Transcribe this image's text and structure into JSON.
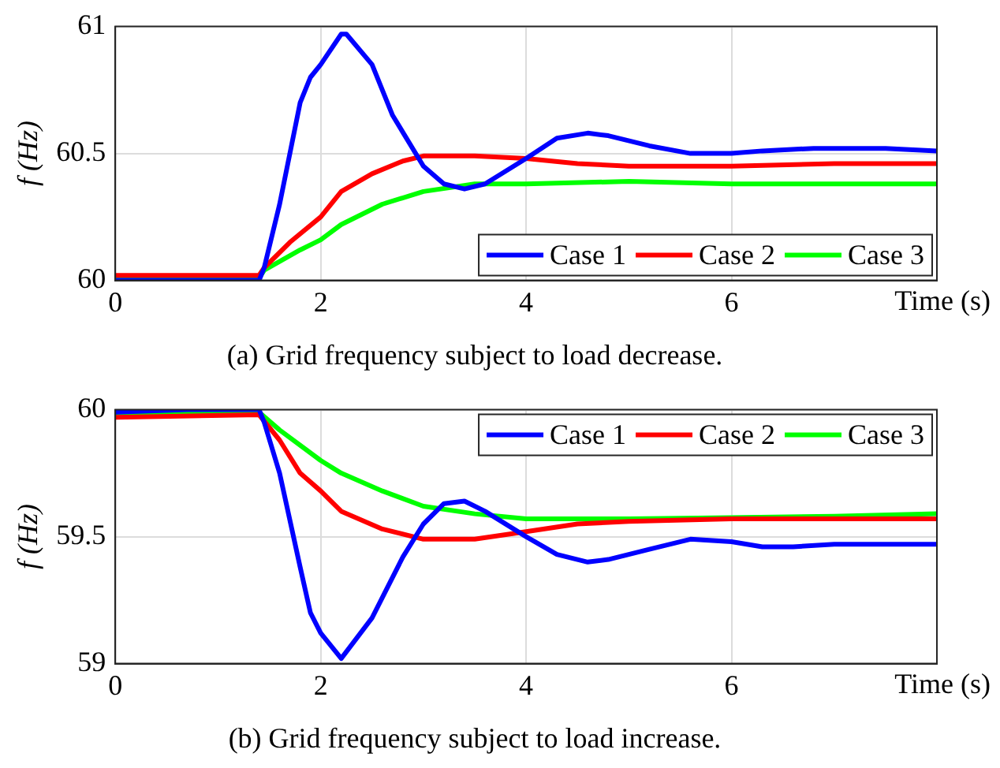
{
  "chart_data": [
    {
      "type": "line",
      "title": "(a) Grid frequency subject to load decrease.",
      "xlabel": "Time (s)",
      "ylabel": "f (Hz)",
      "xlim": [
        0,
        8
      ],
      "xticks": [
        0,
        2,
        4,
        6
      ],
      "ylim": [
        60,
        61
      ],
      "yticks": [
        60,
        60.5,
        61
      ],
      "grid": true,
      "legend": "bottom right",
      "line_style": "solid",
      "marker": "none",
      "series": [
        {
          "name": "Case 1",
          "color": "#0000ff",
          "x": [
            0,
            0.7,
            1.4,
            1.45,
            1.6,
            1.8,
            1.9,
            2.0,
            2.2,
            2.25,
            2.5,
            2.7,
            3.0,
            3.2,
            3.4,
            3.6,
            4.0,
            4.3,
            4.6,
            4.8,
            5.2,
            5.6,
            6.0,
            6.3,
            6.8,
            7.5,
            8
          ],
          "values": [
            60,
            60,
            60,
            60.05,
            60.3,
            60.7,
            60.8,
            60.85,
            60.97,
            60.97,
            60.85,
            60.65,
            60.45,
            60.38,
            60.36,
            60.38,
            60.48,
            60.56,
            60.58,
            60.57,
            60.53,
            60.5,
            60.5,
            60.51,
            60.52,
            60.52,
            60.51
          ]
        },
        {
          "name": "Case 2",
          "color": "#ff0000",
          "x": [
            0,
            1.4,
            1.45,
            1.7,
            2.0,
            2.2,
            2.5,
            2.8,
            3.0,
            3.5,
            4.0,
            4.5,
            5,
            6,
            7,
            8
          ],
          "values": [
            60.02,
            60.02,
            60.05,
            60.15,
            60.25,
            60.35,
            60.42,
            60.47,
            60.49,
            60.49,
            60.48,
            60.46,
            60.45,
            60.45,
            60.46,
            60.46
          ]
        },
        {
          "name": "Case 3",
          "color": "#00ff00",
          "x": [
            0,
            1.4,
            1.45,
            1.8,
            2.0,
            2.2,
            2.6,
            3.0,
            3.5,
            4,
            5,
            6,
            7,
            8
          ],
          "values": [
            60.01,
            60.01,
            60.04,
            60.12,
            60.16,
            60.22,
            60.3,
            60.35,
            60.38,
            60.38,
            60.39,
            60.38,
            60.38,
            60.38
          ]
        }
      ]
    },
    {
      "type": "line",
      "title": "(b) Grid frequency subject to load increase.",
      "xlabel": "Time (s)",
      "ylabel": "f (Hz)",
      "xlim": [
        0,
        8
      ],
      "xticks": [
        0,
        2,
        4,
        6
      ],
      "ylim": [
        59,
        60
      ],
      "yticks": [
        59,
        59.5,
        60
      ],
      "grid": true,
      "legend": "top right",
      "line_style": "solid",
      "marker": "none",
      "series": [
        {
          "name": "Case 1",
          "color": "#0000ff",
          "x": [
            0,
            0.7,
            1.4,
            1.45,
            1.6,
            1.8,
            1.9,
            2.0,
            2.2,
            2.5,
            2.8,
            3.0,
            3.2,
            3.4,
            3.6,
            4.0,
            4.3,
            4.6,
            4.8,
            5.2,
            5.6,
            6.0,
            6.3,
            6.6,
            7,
            8
          ],
          "values": [
            59.99,
            60,
            60,
            59.95,
            59.75,
            59.38,
            59.2,
            59.12,
            59.02,
            59.18,
            59.42,
            59.55,
            59.63,
            59.64,
            59.6,
            59.5,
            59.43,
            59.4,
            59.41,
            59.45,
            59.49,
            59.48,
            59.46,
            59.46,
            59.47,
            59.47
          ]
        },
        {
          "name": "Case 2",
          "color": "#ff0000",
          "x": [
            0,
            1.4,
            1.6,
            1.8,
            2.0,
            2.2,
            2.6,
            3.0,
            3.5,
            4.0,
            4.5,
            5,
            6,
            7,
            8
          ],
          "values": [
            59.97,
            59.98,
            59.88,
            59.75,
            59.68,
            59.6,
            59.53,
            59.49,
            59.49,
            59.52,
            59.55,
            59.56,
            59.57,
            59.57,
            59.57
          ]
        },
        {
          "name": "Case 3",
          "color": "#00ff00",
          "x": [
            0,
            1.4,
            1.6,
            2.0,
            2.2,
            2.6,
            3.0,
            3.5,
            4,
            5,
            6,
            7,
            8
          ],
          "values": [
            59.98,
            59.99,
            59.92,
            59.8,
            59.75,
            59.68,
            59.62,
            59.59,
            59.57,
            59.57,
            59.575,
            59.58,
            59.59
          ]
        }
      ]
    }
  ]
}
